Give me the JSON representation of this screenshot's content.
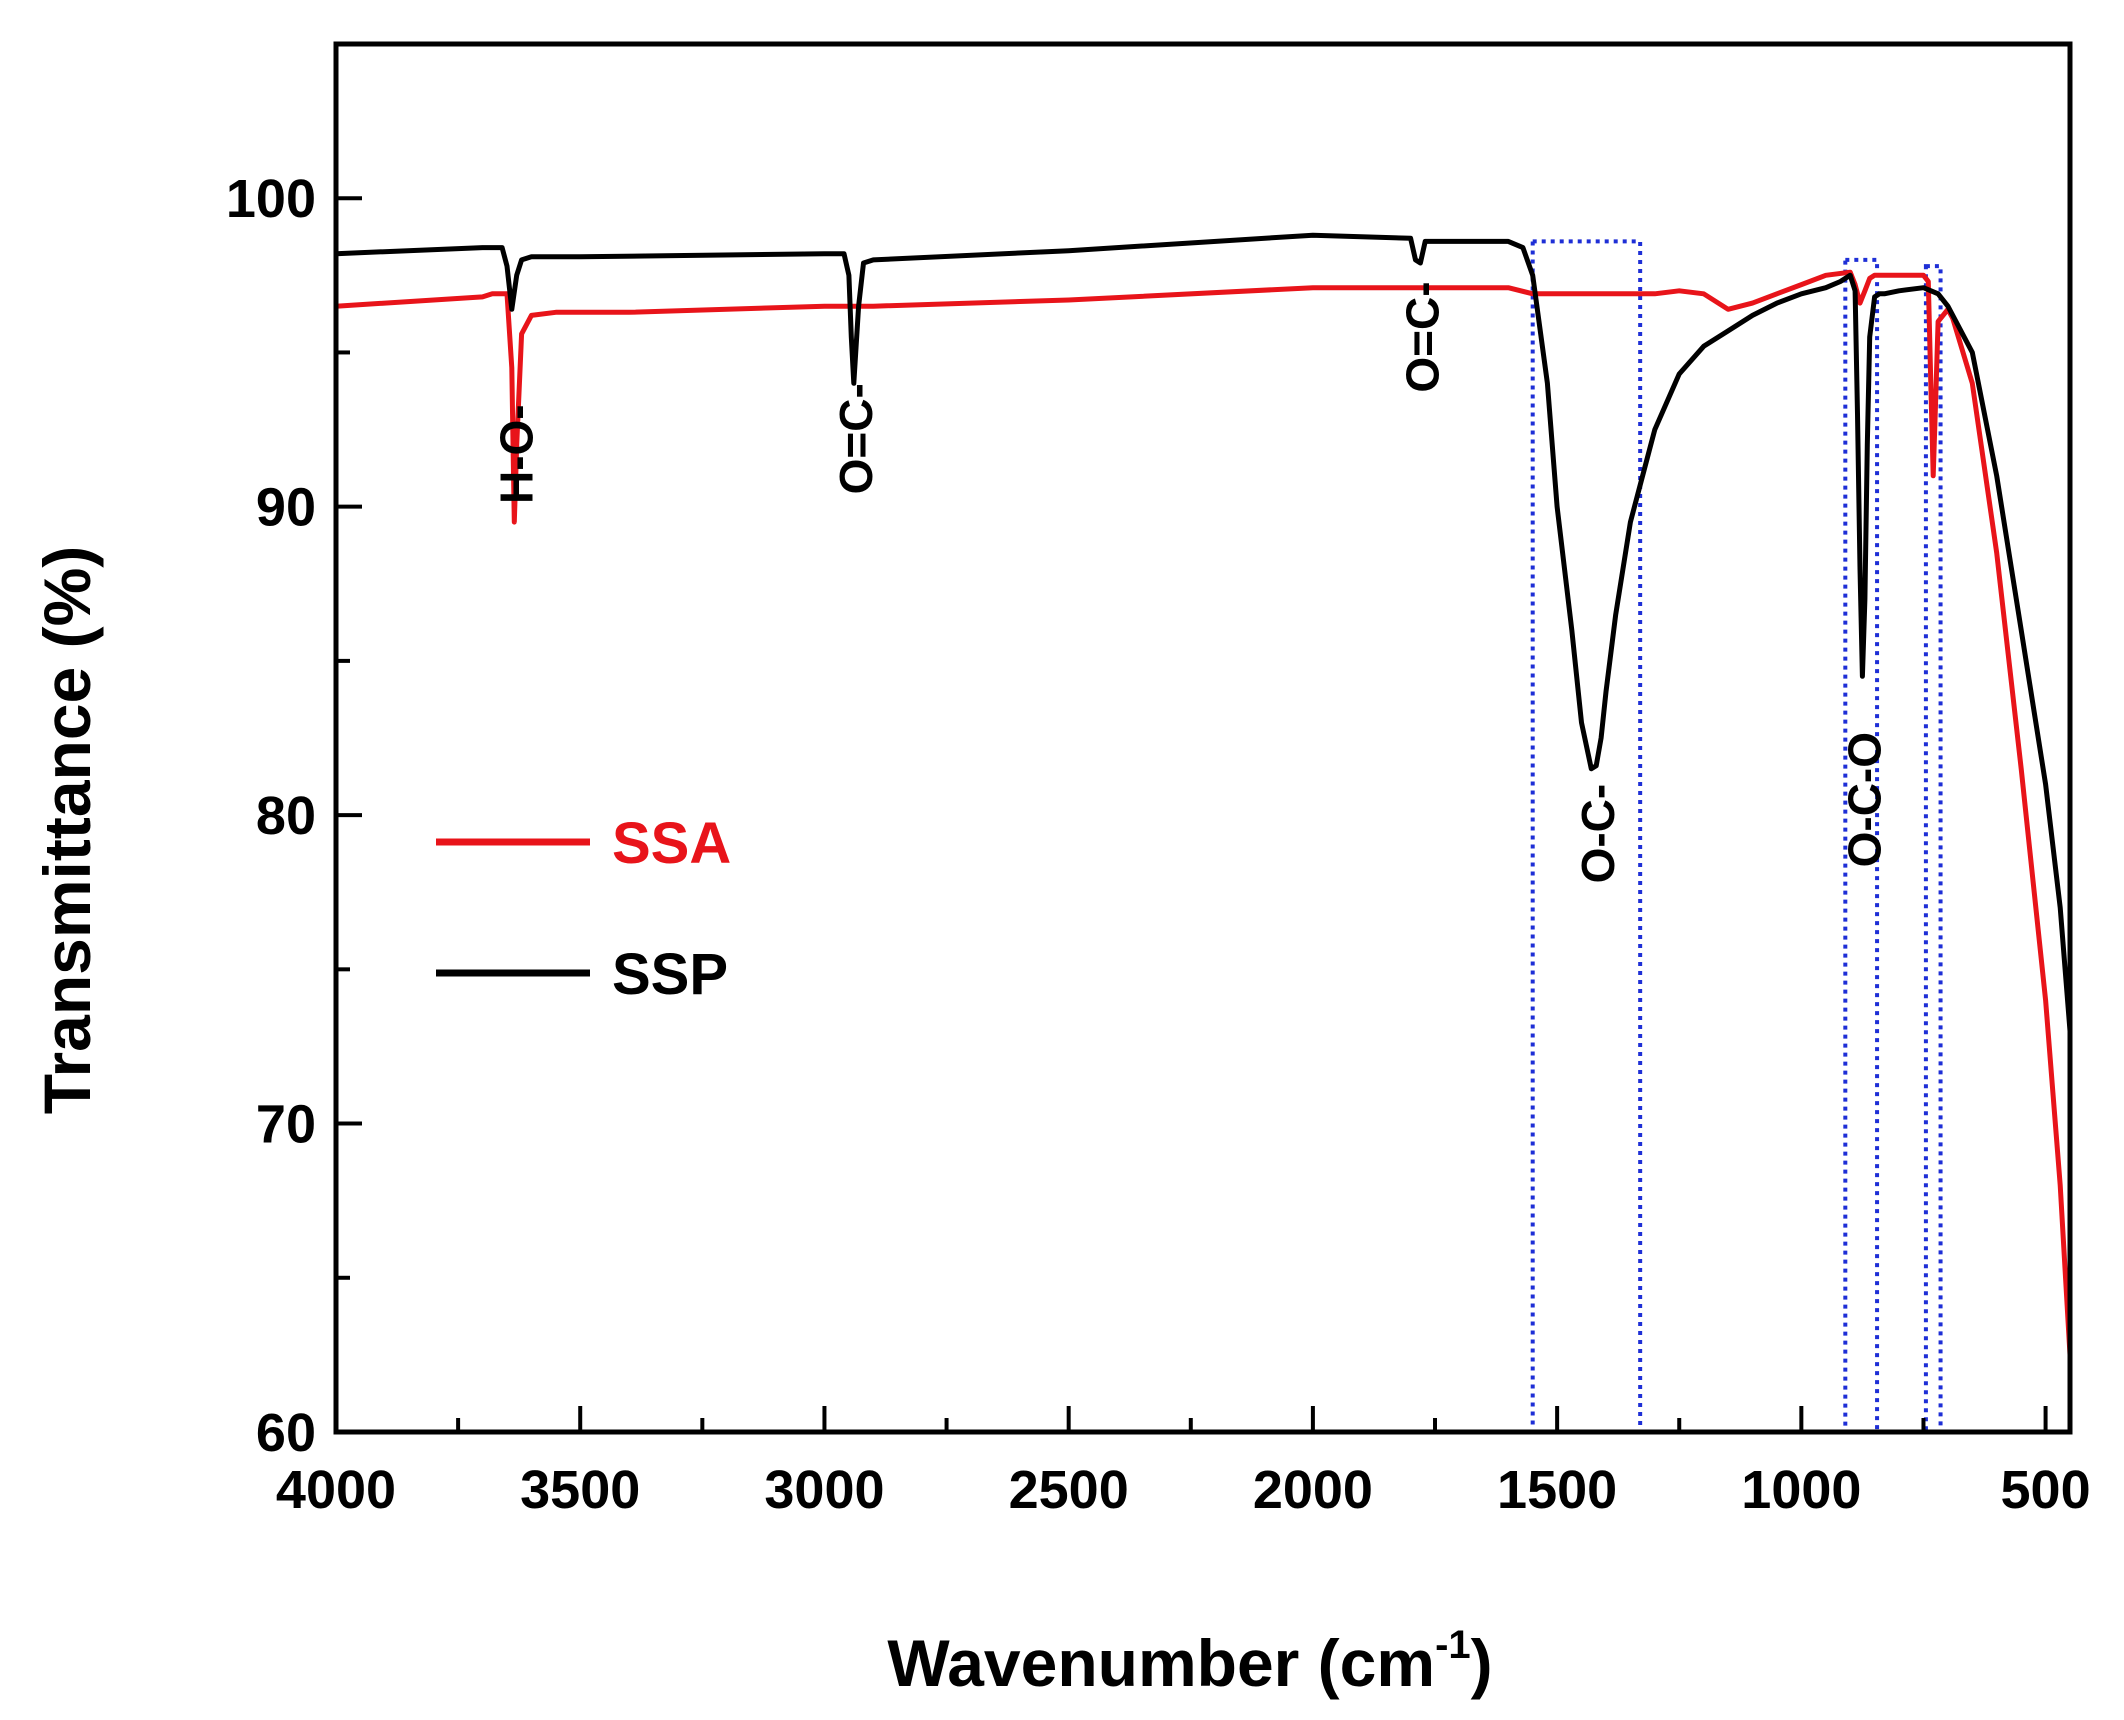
{
  "chart_data": {
    "type": "line",
    "xlabel": "Wavenumber (cm",
    "xlabel_sup": "-1",
    "xlabel_close": ")",
    "ylabel": "Transmittance (%)",
    "xlim": [
      4000,
      450
    ],
    "ylim": [
      60,
      105
    ],
    "x_ticks": [
      4000,
      3500,
      3000,
      2500,
      2000,
      1500,
      1000,
      500
    ],
    "y_ticks": [
      60,
      70,
      80,
      90,
      100
    ],
    "legend_position": "middle-left",
    "series": [
      {
        "name": "SSA",
        "color": "#e8141a",
        "x": [
          4000,
          3700,
          3680,
          3650,
          3640,
          3635,
          3630,
          3620,
          3600,
          3550,
          3400,
          3000,
          2950,
          2900,
          2500,
          2000,
          1800,
          1600,
          1550,
          1500,
          1450,
          1300,
          1250,
          1200,
          1150,
          1100,
          1050,
          1000,
          950,
          900,
          890,
          880,
          870,
          860,
          850,
          800,
          750,
          740,
          735,
          730,
          725,
          720,
          700,
          690,
          650,
          600,
          550,
          500,
          470,
          450
        ],
        "y": [
          96.5,
          96.8,
          96.9,
          96.9,
          94.5,
          89.5,
          92.0,
          95.6,
          96.2,
          96.3,
          96.3,
          96.5,
          96.5,
          96.5,
          96.7,
          97.1,
          97.1,
          97.1,
          96.9,
          96.9,
          96.9,
          96.9,
          97.0,
          96.9,
          96.4,
          96.6,
          96.9,
          97.2,
          97.5,
          97.6,
          97.2,
          96.6,
          97.0,
          97.4,
          97.5,
          97.5,
          97.5,
          97.3,
          94.0,
          91.0,
          93.5,
          96.0,
          96.4,
          96.1,
          94.0,
          88.5,
          81.5,
          74.0,
          68.0,
          62.5
        ]
      },
      {
        "name": "SSP",
        "color": "#000000",
        "x": [
          4000,
          3700,
          3660,
          3650,
          3640,
          3630,
          3620,
          3600,
          3500,
          3000,
          2960,
          2950,
          2945,
          2940,
          2930,
          2920,
          2900,
          2500,
          2000,
          1800,
          1790,
          1780,
          1770,
          1600,
          1570,
          1550,
          1520,
          1500,
          1470,
          1450,
          1430,
          1420,
          1410,
          1400,
          1380,
          1350,
          1300,
          1250,
          1200,
          1150,
          1100,
          1050,
          1000,
          950,
          920,
          900,
          890,
          885,
          880,
          875,
          870,
          865,
          860,
          850,
          840,
          830,
          800,
          750,
          720,
          700,
          650,
          600,
          550,
          500,
          470,
          450
        ],
        "y": [
          98.2,
          98.4,
          98.4,
          97.8,
          96.4,
          97.5,
          98.0,
          98.1,
          98.1,
          98.2,
          98.2,
          97.5,
          95.5,
          94.0,
          96.5,
          97.9,
          98.0,
          98.3,
          98.8,
          98.7,
          98.0,
          97.9,
          98.6,
          98.6,
          98.4,
          97.5,
          94.0,
          90.0,
          86.0,
          83.0,
          81.5,
          81.6,
          82.5,
          84.0,
          86.5,
          89.5,
          92.5,
          94.3,
          95.2,
          95.7,
          96.2,
          96.6,
          96.9,
          97.1,
          97.3,
          97.5,
          97.0,
          93.0,
          88.0,
          84.5,
          87.0,
          92.0,
          95.5,
          96.8,
          96.9,
          96.9,
          97.0,
          97.1,
          96.9,
          96.5,
          95.0,
          91.0,
          86.0,
          81.0,
          77.0,
          73.0
        ]
      }
    ],
    "annotations": [
      {
        "text": "H-O-",
        "x": 3635,
        "y_label_center": 91.7
      },
      {
        "text": "O=C-",
        "x": 2940,
        "y_label_center": 92.2
      },
      {
        "text": "O=C-",
        "x": 1780,
        "y_label_center": 95.5
      },
      {
        "text": "O-C-",
        "x": 1420,
        "y_label_center": 79.4
      },
      {
        "text": "O-C-O",
        "x": 875,
        "y_label_center": 80.5
      }
    ],
    "highlight_regions": [
      {
        "x": [
          1550,
          1330
        ],
        "y": [
          60,
          98.6
        ]
      },
      {
        "x": [
          910,
          845
        ],
        "y": [
          60,
          98.0
        ]
      },
      {
        "x": [
          745,
          715
        ],
        "y": [
          60,
          97.8
        ]
      }
    ],
    "highlight_color": "#1e2fd6"
  }
}
